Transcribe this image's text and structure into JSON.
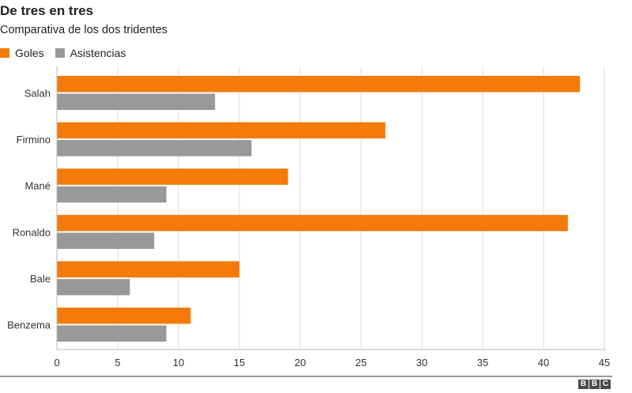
{
  "header": {
    "title": "De tres en tres",
    "subtitle": "Comparativa de los dos tridentes"
  },
  "legend": {
    "items": [
      {
        "label": "Goles",
        "color": "#f47b09"
      },
      {
        "label": "Asistencias",
        "color": "#999999"
      }
    ]
  },
  "logo": {
    "letters": [
      "B",
      "B",
      "C"
    ]
  },
  "chart_data": {
    "type": "bar",
    "orientation": "horizontal",
    "title": "De tres en tres",
    "subtitle": "Comparativa de los dos tridentes",
    "categories": [
      "Salah",
      "Firmino",
      "Mané",
      "Ronaldo",
      "Bale",
      "Benzema"
    ],
    "series": [
      {
        "name": "Goles",
        "color": "#f47b09",
        "values": [
          43,
          27,
          19,
          42,
          15,
          11
        ]
      },
      {
        "name": "Asistencias",
        "color": "#999999",
        "values": [
          13,
          16,
          9,
          8,
          6,
          9
        ]
      }
    ],
    "xlim": [
      0,
      45
    ],
    "xticks": [
      0,
      5,
      10,
      15,
      20,
      25,
      30,
      35,
      40,
      45
    ],
    "grid": true,
    "legend_position": "top-left"
  }
}
